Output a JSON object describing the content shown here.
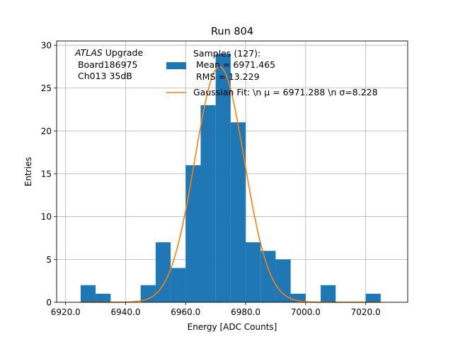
{
  "chart_data": {
    "type": "bar",
    "title": "Run 804",
    "xlabel": "Energy [ADC Counts]",
    "ylabel": "Entries",
    "xlim": [
      6917,
      7034
    ],
    "ylim": [
      0,
      30.5
    ],
    "grid": true,
    "xticks": [
      6920,
      6940,
      6960,
      6980,
      7000,
      7020
    ],
    "xtick_labels": [
      "6920.0",
      "6940.0",
      "6960.0",
      "6980.0",
      "7000.0",
      "7020.0"
    ],
    "yticks": [
      0,
      5,
      10,
      15,
      20,
      25,
      30
    ],
    "ytick_labels": [
      "0",
      "5",
      "10",
      "15",
      "20",
      "25",
      "30"
    ],
    "annotation": {
      "atlas": "ATLAS",
      "atlas_suffix": " Upgrade",
      "line2": " Board186975",
      "line3": " Ch013 35dB"
    },
    "legend": {
      "position": "upper-right",
      "hist_label_lines": [
        "Samples (127):",
        " Mean = 6971.465",
        " RMS = 13.229"
      ],
      "fit_label": "Gaussian Fit: \\n μ = 6971.288 \\n σ=8.228"
    },
    "histogram": {
      "color": "#1f77b4",
      "bin_edges": [
        6925,
        6930,
        6935,
        6940,
        6945,
        6950,
        6955,
        6960,
        6965,
        6970,
        6975,
        6980,
        6985,
        6990,
        6995,
        7000,
        7005,
        7010,
        7015,
        7020,
        7025
      ],
      "counts": [
        2,
        1,
        0,
        0,
        2,
        7,
        4,
        16,
        23,
        29,
        21,
        7,
        6,
        5,
        1,
        0,
        2,
        0,
        0,
        1
      ]
    },
    "gaussian_fit": {
      "color": "#ff7f0e",
      "mu": 6971.288,
      "sigma": 8.228,
      "amplitude": 27.5,
      "x_range": [
        6925,
        7025
      ]
    }
  }
}
